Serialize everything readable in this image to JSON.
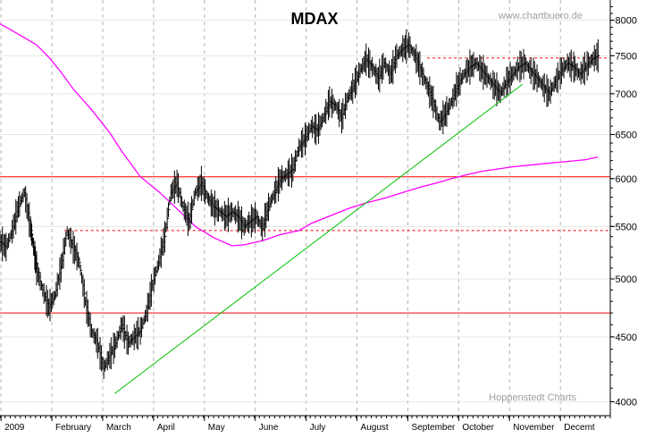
{
  "chart_data": {
    "type": "line",
    "title": "MDAX",
    "watermark_top": "www.chartbuero.de",
    "watermark_bottom": "Hoppenstedt Charts",
    "y_axis": {
      "scale": "log",
      "side": "right",
      "ylim": [
        3900,
        8300
      ],
      "ticks": [
        4000,
        4500,
        5000,
        5500,
        6000,
        6500,
        7000,
        7500,
        8000
      ]
    },
    "x_axis": {
      "month_labels": [
        "2009",
        "February",
        "March",
        "April",
        "May",
        "June",
        "July",
        "August",
        "September",
        "October",
        "November",
        "Decemt"
      ]
    },
    "grid": true,
    "colors": {
      "price": "#000000",
      "moving_average": "#ff00ff",
      "trendline": "#00c000",
      "levels": "#ff0000",
      "grid": "#b4b4b4"
    },
    "horizontal_levels": [
      {
        "value": 6020,
        "style": "solid"
      },
      {
        "value": 5460,
        "style": "dashed"
      },
      {
        "value": 4700,
        "style": "solid"
      },
      {
        "value": 7470,
        "style": "dashed"
      }
    ],
    "trendline": {
      "points": [
        [
          0.188,
          4060
        ],
        [
          0.856,
          7120
        ]
      ]
    },
    "series": [
      {
        "x": [
          0.0,
          0.02,
          0.04,
          0.06,
          0.08,
          0.1,
          0.12,
          0.15,
          0.18,
          0.2,
          0.23,
          0.26,
          0.28,
          0.3,
          0.32,
          0.35,
          0.38,
          0.4,
          0.43,
          0.46,
          0.49,
          0.51,
          0.53,
          0.55,
          0.57,
          0.6,
          0.63,
          0.66,
          0.69,
          0.72,
          0.74,
          0.77,
          0.79,
          0.82,
          0.84,
          0.87,
          0.9,
          0.93,
          0.96,
          0.98
        ],
        "values": [
          7950,
          7850,
          7750,
          7650,
          7480,
          7280,
          7060,
          6800,
          6520,
          6300,
          6020,
          5860,
          5740,
          5620,
          5500,
          5390,
          5310,
          5320,
          5360,
          5420,
          5460,
          5530,
          5580,
          5630,
          5680,
          5740,
          5790,
          5850,
          5910,
          5960,
          6000,
          6050,
          6080,
          6110,
          6130,
          6150,
          6170,
          6190,
          6210,
          6240
        ]
      },
      {
        "x": [
          0.0,
          0.01,
          0.02,
          0.03,
          0.04,
          0.05,
          0.055,
          0.06,
          0.07,
          0.08,
          0.09,
          0.1,
          0.11,
          0.12,
          0.13,
          0.14,
          0.15,
          0.16,
          0.17,
          0.18,
          0.19,
          0.2,
          0.21,
          0.22,
          0.23,
          0.24,
          0.25,
          0.26,
          0.27,
          0.28,
          0.29,
          0.3,
          0.31,
          0.32,
          0.33,
          0.34,
          0.35,
          0.36,
          0.37,
          0.38,
          0.39,
          0.4,
          0.41,
          0.42,
          0.43,
          0.44,
          0.45,
          0.46,
          0.47,
          0.48,
          0.49,
          0.5,
          0.51,
          0.52,
          0.53,
          0.54,
          0.55,
          0.56,
          0.57,
          0.58,
          0.59,
          0.6,
          0.61,
          0.62,
          0.63,
          0.64,
          0.65,
          0.66,
          0.67,
          0.68,
          0.69,
          0.7,
          0.71,
          0.72,
          0.73,
          0.74,
          0.75,
          0.76,
          0.77,
          0.78,
          0.79,
          0.8,
          0.81,
          0.82,
          0.83,
          0.84,
          0.85,
          0.86,
          0.87,
          0.88,
          0.89,
          0.9,
          0.91,
          0.92,
          0.93,
          0.94,
          0.95,
          0.96,
          0.97,
          0.98
        ],
        "values": [
          5350,
          5300,
          5450,
          5700,
          5850,
          5500,
          5300,
          5100,
          4900,
          4750,
          4850,
          5100,
          5450,
          5300,
          5150,
          4800,
          4550,
          4450,
          4250,
          4350,
          4450,
          4600,
          4450,
          4500,
          4550,
          4700,
          4950,
          5150,
          5400,
          5850,
          5950,
          5700,
          5550,
          5850,
          5950,
          5800,
          5700,
          5650,
          5600,
          5650,
          5600,
          5500,
          5550,
          5600,
          5480,
          5700,
          5850,
          6000,
          6050,
          6100,
          6350,
          6450,
          6600,
          6550,
          6700,
          6900,
          6850,
          6700,
          6950,
          7100,
          7300,
          7450,
          7350,
          7200,
          7400,
          7250,
          7500,
          7600,
          7650,
          7500,
          7300,
          7100,
          6900,
          6650,
          6750,
          6900,
          7100,
          7250,
          7350,
          7400,
          7300,
          7200,
          7100,
          7000,
          7150,
          7250,
          7350,
          7400,
          7300,
          7200,
          7100,
          7000,
          7150,
          7300,
          7400,
          7350,
          7250,
          7350,
          7450,
          7500
        ]
      }
    ]
  }
}
